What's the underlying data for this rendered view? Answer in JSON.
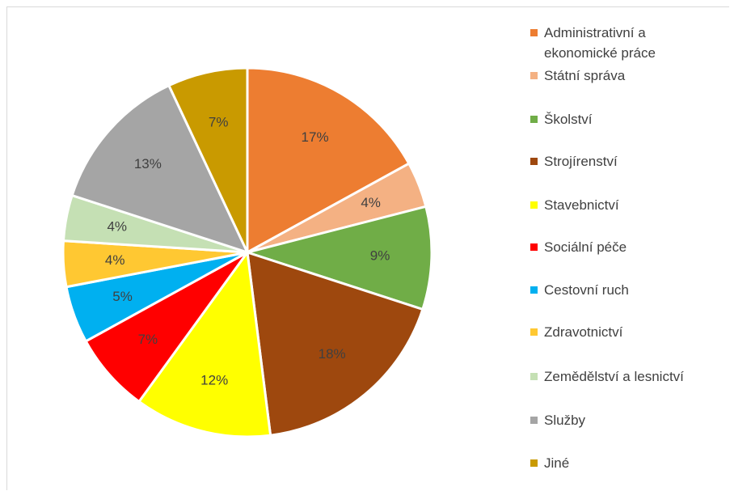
{
  "chart_data": {
    "type": "pie",
    "categories": [
      "Administrativní a ekonomické práce",
      "Státní správa",
      "Školství",
      "Strojírenství",
      "Stavebnictví",
      "Sociální péče",
      "Cestovní ruch",
      "Zdravotnictví",
      "Zemědělství a lesnictví",
      "Služby",
      "Jiné"
    ],
    "values": [
      17,
      4,
      9,
      18,
      12,
      7,
      5,
      4,
      4,
      13,
      7
    ],
    "value_labels": [
      "17%",
      "4%",
      "9%",
      "18%",
      "12%",
      "7%",
      "5%",
      "4%",
      "4%",
      "13%",
      "7%"
    ],
    "colors": [
      "#ED7D31",
      "#F4B183",
      "#70AD47",
      "#9E480E",
      "#FFFF00",
      "#FF0000",
      "#00B0F0",
      "#FFC832",
      "#C5E0B4",
      "#A5A5A5",
      "#C99A00"
    ],
    "legend": "right"
  }
}
